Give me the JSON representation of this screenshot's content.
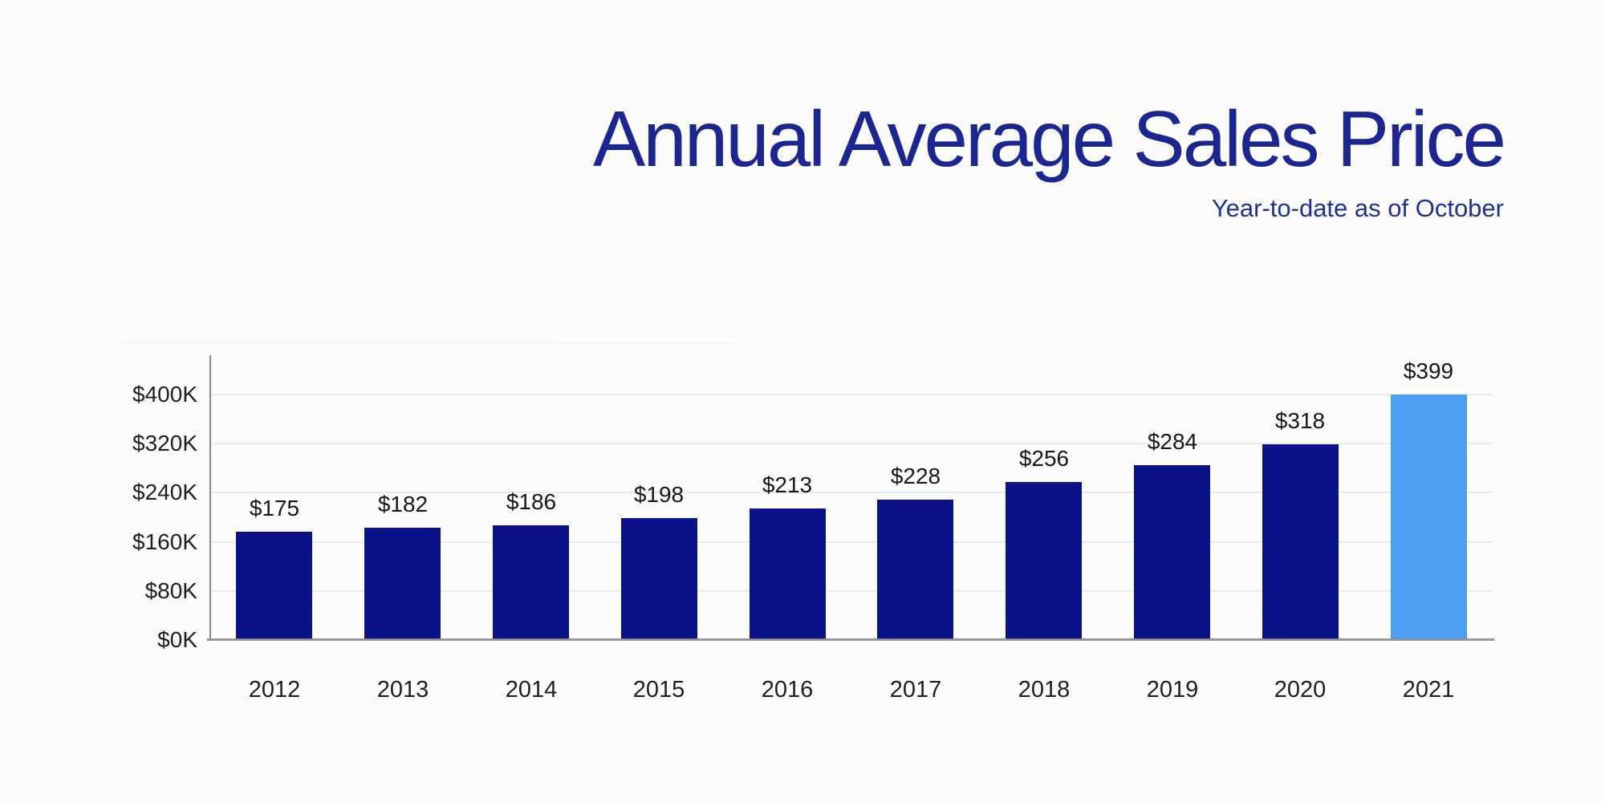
{
  "header": {
    "title": "Annual Average Sales Price",
    "subtitle": "Year-to-date as of October"
  },
  "colors": {
    "title": "#1c2692",
    "subtitle": "#1e3199",
    "bar": "#0b1187",
    "bar_highlight": "#4d9ff3",
    "gridline": "#e4ecf3",
    "axis": "#85898d",
    "tick_text": "#1f1f1f",
    "value_text": "#171717",
    "background": "#fcfcfc"
  },
  "chart_data": {
    "type": "bar",
    "title": "Annual Average Sales Price",
    "subtitle": "Year-to-date as of October",
    "categories": [
      "2012",
      "2013",
      "2014",
      "2015",
      "2016",
      "2017",
      "2018",
      "2019",
      "2020",
      "2021"
    ],
    "values": [
      175,
      182,
      186,
      198,
      213,
      228,
      256,
      284,
      318,
      399
    ],
    "value_labels": [
      "$175",
      "$182",
      "$186",
      "$198",
      "$213",
      "$228",
      "$256",
      "$284",
      "$318",
      "$399"
    ],
    "y_ticks": [
      0,
      80,
      160,
      240,
      320,
      400
    ],
    "y_tick_labels": [
      "$0K",
      "$80K",
      "$160K",
      "$240K",
      "$320K",
      "$400K"
    ],
    "ylim": [
      0,
      400
    ],
    "xlabel": "",
    "ylabel": "",
    "grid": true,
    "legend": false,
    "highlight_index": 9,
    "bar_color": "#0b1187",
    "highlight_color": "#4d9ff3"
  }
}
